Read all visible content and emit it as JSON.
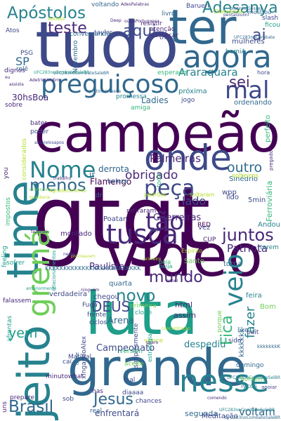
{
  "palette": {
    "c0": "#440154",
    "c1": "#482878",
    "c2": "#3e4989",
    "c3": "#31688e",
    "c4": "#26828e",
    "c5": "#1f9e89",
    "c6": "#35b779",
    "c7": "#6ece58",
    "c8": "#b5de2b",
    "c9": "#fde725"
  },
  "words": [
    {
      "text": "gtgt",
      "color": "c0"
    },
    {
      "text": "campeão",
      "color": "c0"
    },
    {
      "text": "tudo",
      "color": "c2"
    },
    {
      "text": "vídeo",
      "color": "c0"
    },
    {
      "text": "luta",
      "color": "c5"
    },
    {
      "text": "grande",
      "color": "c3"
    },
    {
      "text": "time",
      "color": "c4"
    },
    {
      "text": "jeito",
      "color": "c4"
    },
    {
      "text": "ter",
      "color": "c3"
    },
    {
      "text": "agora",
      "color": "c3"
    },
    {
      "text": "onde",
      "color": "c2"
    },
    {
      "text": "preguiçoso",
      "color": "c3"
    },
    {
      "text": "nesse",
      "color": "c4"
    },
    {
      "text": "mal",
      "color": "c2"
    },
    {
      "text": "Apóstolos",
      "color": "c4"
    },
    {
      "text": "tusca",
      "color": "c1"
    },
    {
      "text": "Nome",
      "color": "c4"
    },
    {
      "text": "grená",
      "color": "c7"
    },
    {
      "text": "menos",
      "color": "c3"
    },
    {
      "text": "peça",
      "color": "c2"
    },
    {
      "text": "tão",
      "color": "c1"
    },
    {
      "text": "juntos",
      "color": "c1"
    },
    {
      "text": "veio",
      "color": "c4"
    },
    {
      "text": "Adesanya",
      "color": "c4"
    },
    {
      "text": "teste",
      "color": "c1"
    },
    {
      "text": "aqui",
      "color": "c2"
    },
    {
      "text": "Jesus",
      "color": "c3"
    },
    {
      "text": "mundo",
      "color": "c1"
    },
    {
      "text": "novo",
      "color": "c4"
    },
    {
      "text": "Brasil",
      "color": "c3"
    },
    {
      "text": "DEUS",
      "color": "c2"
    },
    {
      "text": "obrigado",
      "color": "c1"
    },
    {
      "text": "Patriota",
      "color": "c1"
    },
    {
      "text": "sei",
      "color": "c1"
    },
    {
      "text": "outro",
      "color": "c3"
    },
    {
      "text": "Araraquara",
      "color": "c4"
    },
    {
      "text": "ai",
      "color": "c2"
    },
    {
      "text": "Fica",
      "color": "c6"
    },
    {
      "text": "fazer",
      "color": "c4"
    },
    {
      "text": "yem",
      "color": "c5"
    },
    {
      "text": "30hsBoa",
      "color": "c1"
    },
    {
      "text": "SP",
      "color": "c3"
    },
    {
      "text": "Palmeiras",
      "color": "c1"
    },
    {
      "text": "derrota",
      "color": "c3"
    },
    {
      "text": "Flamengo",
      "color": "c0"
    },
    {
      "text": "lado",
      "color": "c2"
    },
    {
      "text": "Paulista",
      "color": "c1"
    },
    {
      "text": "Guerreiras",
      "color": "c1"
    },
    {
      "text": "Campeonato",
      "color": "c2"
    },
    {
      "text": "despediu",
      "color": "c4"
    },
    {
      "text": "Arena",
      "color": "c3"
    },
    {
      "text": "quarta",
      "color": "c3"
    },
    {
      "text": "kkkkkkk",
      "color": "c3"
    },
    {
      "text": "KKKKKKKKKKKKKKKKKKKKKKKKKK",
      "color": "c3"
    },
    {
      "text": "Ladies",
      "color": "c3"
    },
    {
      "text": "próxima",
      "color": "c4"
    },
    {
      "text": "mulheres",
      "color": "c2"
    },
    {
      "text": "voltam",
      "color": "c3"
    },
    {
      "text": "segunda",
      "color": "c3"
    },
    {
      "text": "Meditação",
      "color": "c2"
    },
    {
      "text": "enfrentará",
      "color": "c2"
    },
    {
      "text": "feira",
      "color": "c4"
    },
    {
      "text": "Sinédrio",
      "color": "c3"
    },
    {
      "text": "Ferroviária",
      "color": "c6"
    },
    {
      "text": "solteiros",
      "color": "c8"
    },
    {
      "text": "html",
      "color": "c1"
    },
    {
      "text": "assim",
      "color": "c1"
    },
    {
      "text": "Bom",
      "color": "c7"
    },
    {
      "text": "clone",
      "color": "c5"
    },
    {
      "text": "chegou",
      "color": "c2"
    },
    {
      "text": "verdadeira",
      "color": "c2"
    },
    {
      "text": "Fuga",
      "color": "c2"
    },
    {
      "text": "frente",
      "color": "c2"
    },
    {
      "text": "ciclos",
      "color": "c2"
    },
    {
      "text": "vez",
      "color": "c2"
    },
    {
      "text": "torna",
      "color": "c3"
    },
    {
      "text": "terem",
      "color": "c4"
    },
    {
      "text": "Espírito",
      "color": "c8"
    },
    {
      "text": "Santo",
      "color": "c7"
    },
    {
      "text": "beija",
      "color": "c5"
    },
    {
      "text": "bela",
      "color": "c6"
    },
    {
      "text": "montado",
      "color": "c1"
    },
    {
      "text": "Poatan",
      "color": "c2"
    },
    {
      "text": "RED",
      "color": "c0"
    },
    {
      "text": "CUP",
      "color": "c1"
    },
    {
      "text": "padrões",
      "color": "c8"
    },
    {
      "text": "soltaram",
      "color": "c8"
    },
    {
      "text": "Andou",
      "color": "c4"
    },
    {
      "text": "5min",
      "color": "c2"
    },
    {
      "text": "wpp",
      "color": "c2"
    },
    {
      "text": "lido",
      "color": "c2"
    },
    {
      "text": "retiraram",
      "color": "c1"
    },
    {
      "text": "beleza",
      "color": "c3"
    },
    {
      "text": "ordenando",
      "color": "c3"
    },
    {
      "text": "perfeito",
      "color": "c6"
    },
    {
      "text": "jogo",
      "color": "c2"
    },
    {
      "text": "homiA",
      "color": "c4"
    },
    {
      "text": "hora",
      "color": "c2"
    },
    {
      "text": "esperado",
      "color": "c6"
    },
    {
      "text": "amiga",
      "color": "c6"
    },
    {
      "text": "promessa",
      "color": "c4"
    },
    {
      "text": "voltando",
      "color": "c3"
    },
    {
      "text": "Barueri",
      "color": "c2"
    },
    {
      "text": "Chamando",
      "color": "c8"
    },
    {
      "text": "mostrou",
      "color": "c3"
    },
    {
      "text": "slash",
      "color": "c2"
    },
    {
      "text": "ficou",
      "color": "c5"
    },
    {
      "text": "livro",
      "color": "c3"
    },
    {
      "text": "resistir",
      "color": "c1"
    },
    {
      "text": "atenção",
      "color": "c1"
    },
    {
      "text": "começar",
      "color": "c1"
    },
    {
      "text": "taylor",
      "color": "c2"
    },
    {
      "text": "this",
      "color": "c2"
    },
    {
      "text": "conversando",
      "color": "c3"
    },
    {
      "text": "Atos",
      "color": "c2"
    },
    {
      "text": "PSG",
      "color": "c2"
    },
    {
      "text": "rolê",
      "color": "c3"
    },
    {
      "text": "dignos",
      "color": "c1"
    },
    {
      "text": "Novembro",
      "color": "c3"
    },
    {
      "text": "sobre",
      "color": "c1"
    },
    {
      "text": "bater",
      "color": "c1"
    },
    {
      "text": "poder",
      "color": "c2"
    },
    {
      "text": "considerados",
      "color": "c8"
    },
    {
      "text": "you",
      "color": "c1"
    },
    {
      "text": "impostos",
      "color": "c6"
    },
    {
      "text": "sofrer",
      "color": "c5"
    },
    {
      "text": "feeling",
      "color": "c5"
    },
    {
      "text": "falassem",
      "color": "c1"
    },
    {
      "text": "afrontas",
      "color": "c5"
    },
    {
      "text": "Matinal",
      "color": "c2"
    },
    {
      "text": "caí",
      "color": "c2"
    },
    {
      "text": "minutowhat",
      "color": "c1"
    },
    {
      "text": "prepare",
      "color": "c1"
    },
    {
      "text": "uns",
      "color": "c1"
    },
    {
      "text": "sob",
      "color": "c2"
    },
    {
      "text": "real",
      "color": "c3"
    },
    {
      "text": "xingandoAlex",
      "color": "c2"
    },
    {
      "text": "has",
      "color": "c1"
    },
    {
      "text": "inal",
      "color": "c2"
    },
    {
      "text": "chances",
      "color": "c2"
    },
    {
      "text": "diaaaa",
      "color": "c2"
    },
    {
      "text": "simplesmente",
      "color": "c2"
    },
    {
      "text": "aceite",
      "color": "c7"
    },
    {
      "text": "primeira",
      "color": "c7"
    },
    {
      "text": "version",
      "color": "c6"
    },
    {
      "text": "vence",
      "color": "c8"
    },
    {
      "text": "like",
      "color": "c3"
    },
    {
      "text": "bait",
      "color": "c2"
    },
    {
      "text": "sido",
      "color": "c2"
    },
    {
      "text": "domingo",
      "color": "c3"
    },
    {
      "text": "homem",
      "color": "c7"
    },
    {
      "text": "lycos",
      "color": "c4"
    },
    {
      "text": "ir",
      "color": "c3"
    },
    {
      "text": "dr",
      "color": "c3"
    },
    {
      "text": "toda",
      "color": "c6"
    },
    {
      "text": "estratégia",
      "color": "c5"
    },
    {
      "text": "relacionamentos",
      "color": "c5"
    },
    {
      "text": "vai",
      "color": "c2"
    },
    {
      "text": "disse",
      "color": "c3"
    },
    {
      "text": "porque",
      "color": "c7"
    },
    {
      "text": "kkkkkkkK",
      "color": "c3"
    },
    {
      "text": "AVENAS",
      "color": "c8"
    },
    {
      "text": "Deep",
      "color": "c1"
    },
    {
      "text": "quero",
      "color": "c1"
    },
    {
      "text": "primeiro",
      "color": "c8"
    },
    {
      "text": "apoiar",
      "color": "c2"
    },
    {
      "text": "comendo",
      "color": "c1"
    },
    {
      "text": "concentração",
      "color": "c8"
    },
    {
      "text": "neste",
      "color": "c2"
    },
    {
      "text": "achei",
      "color": "c1"
    },
    {
      "text": "ninguém",
      "color": "c1"
    },
    {
      "text": "anteriormente",
      "color": "c5"
    },
    {
      "text": "trabalho",
      "color": "c1"
    },
    {
      "text": "agradecimento",
      "color": "c8"
    },
    {
      "text": "economizar",
      "color": "c7"
    },
    {
      "text": "guardaria",
      "color": "c8"
    },
    {
      "text": "precisavam",
      "color": "c8"
    },
    {
      "text": "fazendo",
      "color": "c1"
    },
    {
      "text": "eu",
      "color": "c1"
    },
    {
      "text": "pregador",
      "color": "c1"
    },
    {
      "text": "assista",
      "color": "c1"
    },
    {
      "text": "UFC283noCombateSaleBR",
      "color": "c3"
    },
    {
      "text": "UFC283noCombateSelBR",
      "color": "c4"
    },
    {
      "text": "UFC283noCombateSaleBR",
      "color": "c3"
    },
    {
      "text": "UFC283noCombateSaleBR",
      "color": "c4"
    },
    {
      "text": "UFC283noCombate",
      "color": "c3"
    },
    {
      "text": "UFC283noCombateSaleBR",
      "color": "c5"
    },
    {
      "text": "AdetrioVerdim",
      "color": "c1"
    },
    {
      "text": "AdesPalabras",
      "color": "c1"
    },
    {
      "text": "outraPortuguesa",
      "color": "c1"
    },
    {
      "text": "pretinhoWeeke",
      "color": "c3"
    },
    {
      "text": "pretinhoGosses",
      "color": "c3"
    },
    {
      "text": "pentaGiulini",
      "color": "c2"
    },
    {
      "text": "amarelosapos",
      "color": "c2"
    },
    {
      "text": "comboiando",
      "color": "c1"
    },
    {
      "text": "conseguir",
      "color": "c1"
    }
  ]
}
